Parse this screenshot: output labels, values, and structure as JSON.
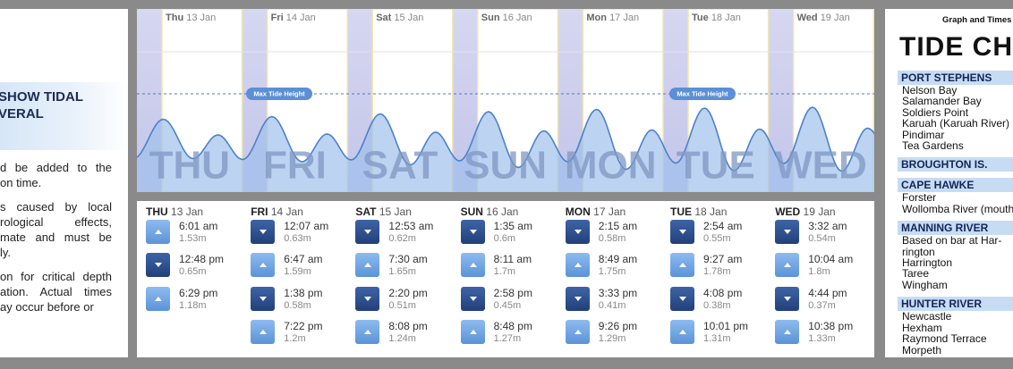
{
  "left_panel": {
    "heading": [
      "SHOW TIDAL",
      "VERAL"
    ],
    "paragraphs": [
      [
        "d be added to the",
        "on time."
      ],
      [
        "s caused by local",
        "rological effects,",
        "mate and must be",
        "ly."
      ],
      [
        "on for critical depth",
        "ation. Actual times",
        "ay occur before or"
      ]
    ]
  },
  "graph": {
    "days": [
      {
        "day": "Thu",
        "date": "13 Jan",
        "watermark": "THU"
      },
      {
        "day": "Fri",
        "date": "14 Jan",
        "watermark": "FRI"
      },
      {
        "day": "Sat",
        "date": "15 Jan",
        "watermark": "SAT"
      },
      {
        "day": "Sun",
        "date": "16 Jan",
        "watermark": "SUN"
      },
      {
        "day": "Mon",
        "date": "17 Jan",
        "watermark": "MON"
      },
      {
        "day": "Tue",
        "date": "18 Jan",
        "watermark": "TUE"
      },
      {
        "day": "Wed",
        "date": "19 Jan",
        "watermark": "WED"
      }
    ],
    "max_tide_labels": [
      "Max Tide Height",
      "Max Tide Height"
    ]
  },
  "tide_table": [
    {
      "day": "THU",
      "date": "13 Jan",
      "tides": [
        {
          "time": "6:01 am",
          "height": "1.53m"
        },
        {
          "time": "12:48 pm",
          "height": "0.65m"
        },
        {
          "time": "6:29 pm",
          "height": "1.18m"
        }
      ]
    },
    {
      "day": "FRI",
      "date": "14 Jan",
      "tides": [
        {
          "time": "12:07 am",
          "height": "0.63m"
        },
        {
          "time": "6:47 am",
          "height": "1.59m"
        },
        {
          "time": "1:38 pm",
          "height": "0.58m"
        },
        {
          "time": "7:22 pm",
          "height": "1.2m"
        }
      ]
    },
    {
      "day": "SAT",
      "date": "15 Jan",
      "tides": [
        {
          "time": "12:53 am",
          "height": "0.62m"
        },
        {
          "time": "7:30 am",
          "height": "1.65m"
        },
        {
          "time": "2:20 pm",
          "height": "0.51m"
        },
        {
          "time": "8:08 pm",
          "height": "1.24m"
        }
      ]
    },
    {
      "day": "SUN",
      "date": "16 Jan",
      "tides": [
        {
          "time": "1:35 am",
          "height": "0.6m"
        },
        {
          "time": "8:11 am",
          "height": "1.7m"
        },
        {
          "time": "2:58 pm",
          "height": "0.45m"
        },
        {
          "time": "8:48 pm",
          "height": "1.27m"
        }
      ]
    },
    {
      "day": "MON",
      "date": "17 Jan",
      "tides": [
        {
          "time": "2:15 am",
          "height": "0.58m"
        },
        {
          "time": "8:49 am",
          "height": "1.75m"
        },
        {
          "time": "3:33 pm",
          "height": "0.41m"
        },
        {
          "time": "9:26 pm",
          "height": "1.29m"
        }
      ]
    },
    {
      "day": "TUE",
      "date": "18 Jan",
      "tides": [
        {
          "time": "2:54 am",
          "height": "0.55m"
        },
        {
          "time": "9:27 am",
          "height": "1.78m"
        },
        {
          "time": "4:08 pm",
          "height": "0.38m"
        },
        {
          "time": "10:01 pm",
          "height": "1.31m"
        }
      ]
    },
    {
      "day": "WED",
      "date": "19 Jan",
      "tides": [
        {
          "time": "3:32 am",
          "height": "0.54m"
        },
        {
          "time": "10:04 am",
          "height": "1.8m"
        },
        {
          "time": "4:44 pm",
          "height": "0.37m"
        },
        {
          "time": "10:38 pm",
          "height": "1.33m"
        }
      ]
    }
  ],
  "sidebar": {
    "caption": "Graph and Times",
    "title": "TIDE CH",
    "sections": [
      {
        "header": "PORT STEPHENS",
        "items": [
          "Nelson Bay",
          "Salamander Bay",
          "Soldiers Point",
          "Karuah (Karuah River)",
          "Pindimar",
          "Tea Gardens"
        ]
      },
      {
        "header": "BROUGHTON IS.",
        "items": []
      },
      {
        "header": "CAPE HAWKE",
        "items": [
          "Forster",
          "Wollomba River (mouth)"
        ]
      },
      {
        "header": "MANNING RIVER",
        "items": [
          "Based on bar at Har-",
          "rington",
          "Harrington",
          "Taree",
          "Wingham"
        ]
      },
      {
        "header": "HUNTER RIVER",
        "items": [
          "Newcastle",
          "Hexham",
          "Raymond Terrace",
          "Morpeth"
        ]
      }
    ]
  }
}
